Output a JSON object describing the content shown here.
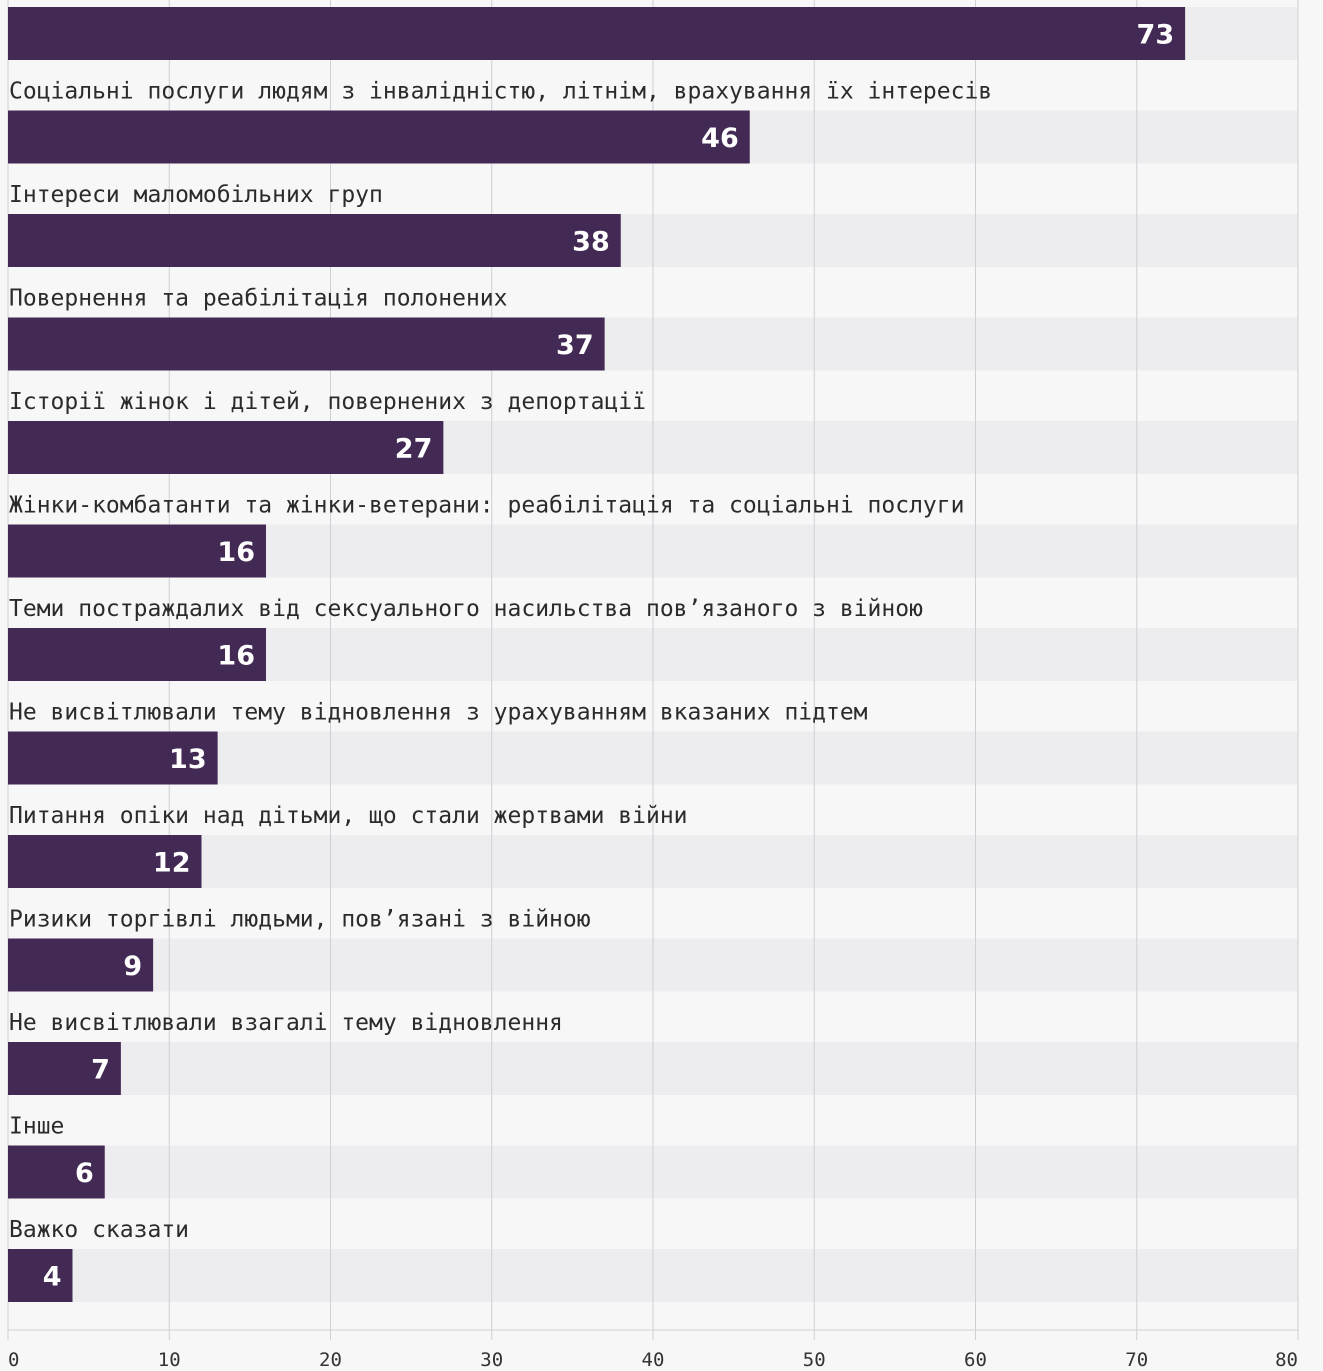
{
  "chart_data": {
    "type": "bar",
    "orientation": "horizontal",
    "categories": [
      "",
      "Соціальні послуги людям з інвалідністю, літнім, врахування їх інтересів",
      "Інтереси маломобільних груп",
      "Повернення та реабілітація полонених",
      "Історії жінок і дітей, повернених з депортації",
      "Жінки-комбатанти та жінки-ветерани: реабілітація та соціальні послуги",
      "Теми постраждалих від сексуального насильства пов’язаного з війною",
      "Не висвітлювали тему відновлення з урахуванням вказаних підтем",
      "Питання опіки над дітьми, що стали жертвами війни",
      "Ризики торгівлі людьми, пов’язані з війною",
      "Не висвітлювали взагалі тему відновлення",
      "Інше",
      "Важко сказати"
    ],
    "values": [
      73,
      46,
      38,
      37,
      27,
      16,
      16,
      13,
      12,
      9,
      7,
      6,
      4
    ],
    "value_labels": [
      "73",
      "46",
      "38",
      "37",
      "27",
      "16",
      "16",
      "13",
      "12",
      "9",
      "7",
      "6",
      "4"
    ],
    "xlim": [
      0,
      80
    ],
    "x_ticks": [
      0,
      10,
      20,
      30,
      40,
      50,
      60,
      70,
      80
    ],
    "x_tick_labels": [
      "0",
      "10",
      "20",
      "30",
      "40",
      "50",
      "60",
      "70",
      "80"
    ],
    "grid": true,
    "legend": "none",
    "colors": {
      "bar": "#432a54",
      "track": "#ededf0",
      "background": "#f7f7f8",
      "grid": "#cfcfd4",
      "value_text": "#ffffff",
      "label_text": "#2b2b2b"
    }
  }
}
